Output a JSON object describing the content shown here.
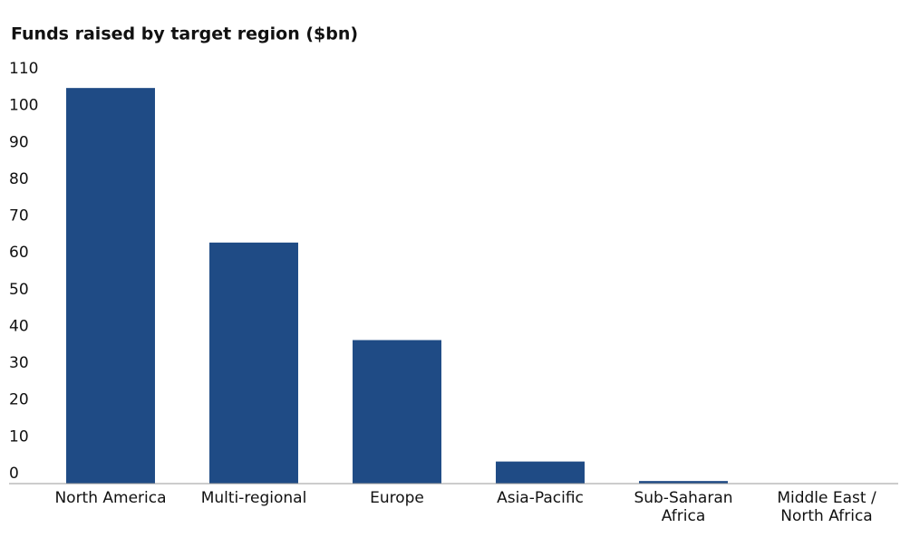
{
  "chart_data": {
    "type": "bar",
    "title": "Funds raised by target region ($bn)",
    "categories": [
      "North America",
      "Multi-regional",
      "Europe",
      "Asia-Pacific",
      "Sub-Saharan\nAfrica",
      "Middle East /\nNorth Africa"
    ],
    "values": [
      107.5,
      65.5,
      39,
      6,
      0.7,
      0
    ],
    "color": "#1f4b85",
    "ylim": [
      0,
      110
    ],
    "yticks": [
      0,
      10,
      20,
      30,
      40,
      50,
      60,
      70,
      80,
      90,
      100,
      110
    ],
    "grid": false
  }
}
